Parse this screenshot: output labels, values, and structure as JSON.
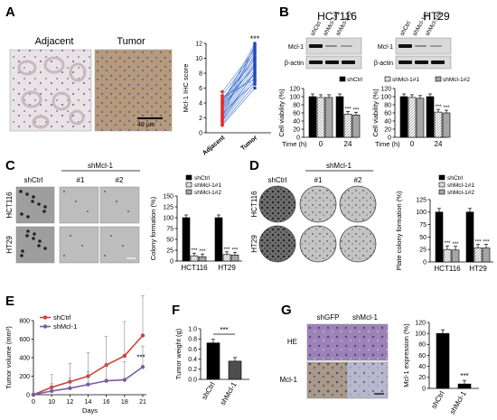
{
  "panels": {
    "A": {
      "label": "A",
      "img_titles": [
        "Adjacent",
        "Tumor"
      ],
      "scale_bar": "40 μm",
      "ihc": {
        "ylabel": "Mcl-1 IHC score",
        "categories": [
          "Adjacent",
          "Tumor"
        ],
        "yticks": [
          0,
          2,
          4,
          6,
          8,
          10,
          12
        ],
        "ylim": [
          0,
          12
        ],
        "adjacent": [
          1.0,
          1.2,
          1.5,
          1.8,
          2.0,
          2.2,
          2.5,
          2.8,
          3.0,
          3.2,
          3.5,
          3.8,
          4.0,
          4.2,
          4.5,
          4.8,
          5.0,
          5.5,
          2.6,
          3.4,
          1.6,
          4.4,
          2.1,
          3.9
        ],
        "tumor": [
          6.0,
          6.5,
          7.0,
          7.5,
          8.0,
          8.5,
          9.0,
          9.5,
          10.0,
          10.5,
          11.0,
          11.5,
          12.0,
          8.8,
          9.8,
          7.2,
          10.8,
          11.2,
          6.8,
          9.2,
          8.2,
          10.2,
          11.8,
          7.8
        ],
        "sig": "***"
      }
    },
    "B": {
      "label": "B",
      "titles": [
        "HCT116",
        "HT29"
      ],
      "lanes": [
        "shCtrl",
        "shMcl-1#1",
        "shMcl-1#2"
      ],
      "blots": [
        "Mcl-1",
        "β-actin"
      ],
      "legend": [
        "shCtrl",
        "shMcl-1#1",
        "shMcl-1#2"
      ],
      "ylabel": "Cell viability (%)",
      "yticks": [
        0,
        20,
        40,
        60,
        80,
        100,
        120
      ],
      "ylim": [
        0,
        120
      ],
      "xlabel": "Time (h)",
      "times": [
        "0",
        "24"
      ],
      "hct116": [
        [
          100,
          98,
          98
        ],
        [
          100,
          57,
          55
        ]
      ],
      "ht29": [
        [
          100,
          98,
          96
        ],
        [
          100,
          62,
          60
        ]
      ],
      "sig": "***"
    },
    "C": {
      "label": "C",
      "header": "shMcl-1",
      "cols": [
        "shCtrl",
        "#1",
        "#2"
      ],
      "rows": [
        "HCT116",
        "HT29"
      ],
      "legend": [
        "shCtrl",
        "shMcl-1#1",
        "shMcl-1#2"
      ],
      "ylabel": "Colony formation (%)",
      "yticks": [
        0,
        25,
        50,
        75,
        100,
        125,
        150
      ],
      "ylim": [
        0,
        150
      ],
      "categories": [
        "HCT116",
        "HT29"
      ],
      "values": [
        [
          100,
          12,
          10
        ],
        [
          100,
          15,
          14
        ]
      ],
      "sig": "***"
    },
    "D": {
      "label": "D",
      "header": "shMcl-1",
      "cols": [
        "shCtrl",
        "#1",
        "#2"
      ],
      "rows": [
        "HCT116",
        "HT29"
      ],
      "legend": [
        "shCtrl",
        "shMcl-1#1",
        "shMcl-1#2"
      ],
      "ylabel": "Plate colony formation (%)",
      "yticks": [
        0,
        25,
        50,
        75,
        100,
        125
      ],
      "ylim": [
        0,
        125
      ],
      "categories": [
        "HCT116",
        "HT29"
      ],
      "values": [
        [
          100,
          25,
          24
        ],
        [
          100,
          28,
          28
        ]
      ],
      "sig": "***"
    },
    "E": {
      "label": "E",
      "ylabel": "Tumor volume (mm³)",
      "xlabel": "Days",
      "yticks": [
        0,
        200,
        400,
        600,
        800
      ],
      "ylim": [
        0,
        800
      ],
      "xticks": [
        0,
        10,
        12,
        14,
        16,
        18,
        21
      ],
      "series": [
        {
          "name": "shCtrl",
          "values": [
            0,
            80,
            140,
            200,
            320,
            420,
            640
          ]
        },
        {
          "name": "shMcl-1",
          "values": [
            0,
            40,
            70,
            110,
            150,
            160,
            300
          ]
        }
      ],
      "sig": "***"
    },
    "F": {
      "label": "F",
      "ylabel": "Tumor weight (g)",
      "yticks": [
        0.0,
        0.2,
        0.4,
        0.6,
        0.8,
        1.0
      ],
      "ylim": [
        0,
        1.0
      ],
      "categories": [
        "shCtrl",
        "shMcl-1"
      ],
      "values": [
        0.72,
        0.36
      ],
      "sig": "***"
    },
    "G": {
      "label": "G",
      "cols": [
        "shGFP",
        "shMcl-1"
      ],
      "rows": [
        "HE",
        "Mcl-1"
      ],
      "ylabel": "Mcl-1 expression (%)",
      "yticks": [
        0,
        20,
        40,
        60,
        80,
        100,
        120
      ],
      "ylim": [
        0,
        120
      ],
      "categories": [
        "shCtrl",
        "shMcl-1"
      ],
      "values": [
        100,
        8
      ],
      "sig": "***"
    }
  }
}
